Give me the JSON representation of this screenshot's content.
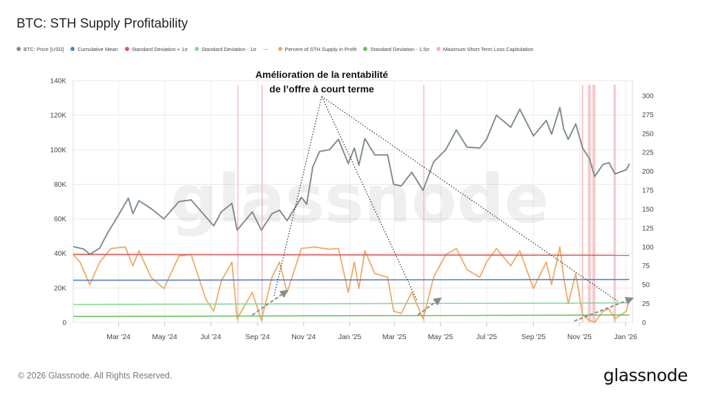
{
  "title": "BTC: STH Supply Profitability",
  "legend": [
    {
      "label": "BTC: Price [USD]",
      "color": "#7f8c8d"
    },
    {
      "label": "Cumulative Mean",
      "color": "#4a7fd4"
    },
    {
      "label": "Standard Deviation + 1σ",
      "color": "#e05555"
    },
    {
      "label": "Standard Deviation - 1σ",
      "color": "#7fd99a"
    },
    {
      "label": "Percent of STH Supply in Profit",
      "color": "#f0a860"
    },
    {
      "label": "Standard Deviation - 1.5σ",
      "color": "#6abf5a"
    },
    {
      "label": "Maximum Short Term Loss Capitulation",
      "color": "#f2b8bc"
    }
  ],
  "legend_separator": "---",
  "annotation": [
    "Amélioration de la rentabilité",
    "de l’offre à court terme"
  ],
  "watermark": "glassnode",
  "footer": "© 2026 Glassnode. All Rights Reserved.",
  "brand": "glassnode",
  "chart_data": {
    "type": "line",
    "x_axis": {
      "type": "date",
      "range": [
        "2024-01-01",
        "2026-01-10"
      ],
      "ticks": [
        {
          "label": "Mar '24",
          "date": "2024-03-01"
        },
        {
          "label": "May '24",
          "date": "2024-05-01"
        },
        {
          "label": "Jul '24",
          "date": "2024-07-01"
        },
        {
          "label": "Sep '24",
          "date": "2024-09-01"
        },
        {
          "label": "Nov '24",
          "date": "2024-11-01"
        },
        {
          "label": "Jan '25",
          "date": "2025-01-01"
        },
        {
          "label": "Mar '25",
          "date": "2025-03-01"
        },
        {
          "label": "May '25",
          "date": "2025-05-01"
        },
        {
          "label": "Jul '25",
          "date": "2025-07-01"
        },
        {
          "label": "Sep '25",
          "date": "2025-09-01"
        },
        {
          "label": "Nov '25",
          "date": "2025-11-01"
        },
        {
          "label": "Jan '26",
          "date": "2026-01-01"
        }
      ]
    },
    "y_left": {
      "range": [
        0,
        140000
      ],
      "tick_values": [
        0,
        20000,
        40000,
        60000,
        80000,
        100000,
        120000,
        140000
      ],
      "tick_labels": [
        "0",
        "20K",
        "40K",
        "60K",
        "80K",
        "100K",
        "120K",
        "140K"
      ]
    },
    "y_right": {
      "range": [
        0,
        320
      ],
      "tick_values": [
        0,
        25,
        50,
        75,
        100,
        125,
        150,
        175,
        200,
        225,
        250,
        275,
        300
      ],
      "tick_labels": [
        "0",
        "25",
        "50",
        "75",
        "100",
        "125",
        "150",
        "175",
        "200",
        "225",
        "250",
        "275",
        "300"
      ]
    },
    "grid": true,
    "series": [
      {
        "name": "BTC: Price [USD]",
        "axis": "left",
        "color": "#7f8c8d",
        "points": [
          [
            "2024-01-01",
            44000
          ],
          [
            "2024-01-15",
            42500
          ],
          [
            "2024-01-23",
            39500
          ],
          [
            "2024-02-05",
            43000
          ],
          [
            "2024-02-15",
            51500
          ],
          [
            "2024-02-29",
            61500
          ],
          [
            "2024-03-14",
            72000
          ],
          [
            "2024-03-20",
            63000
          ],
          [
            "2024-03-28",
            70500
          ],
          [
            "2024-04-13",
            66000
          ],
          [
            "2024-04-30",
            60000
          ],
          [
            "2024-05-20",
            70000
          ],
          [
            "2024-06-05",
            71000
          ],
          [
            "2024-06-25",
            61000
          ],
          [
            "2024-07-05",
            56000
          ],
          [
            "2024-07-15",
            64000
          ],
          [
            "2024-07-29",
            69000
          ],
          [
            "2024-08-05",
            53500
          ],
          [
            "2024-08-25",
            64000
          ],
          [
            "2024-09-06",
            53500
          ],
          [
            "2024-09-20",
            63000
          ],
          [
            "2024-09-30",
            65000
          ],
          [
            "2024-10-10",
            59000
          ],
          [
            "2024-10-29",
            72500
          ],
          [
            "2024-11-05",
            68500
          ],
          [
            "2024-11-13",
            90000
          ],
          [
            "2024-11-22",
            99000
          ],
          [
            "2024-12-05",
            100000
          ],
          [
            "2024-12-17",
            106000
          ],
          [
            "2024-12-30",
            92000
          ],
          [
            "2025-01-07",
            101000
          ],
          [
            "2025-01-13",
            91000
          ],
          [
            "2025-01-21",
            106500
          ],
          [
            "2025-02-03",
            97000
          ],
          [
            "2025-02-20",
            97000
          ],
          [
            "2025-02-28",
            80000
          ],
          [
            "2025-03-10",
            79000
          ],
          [
            "2025-03-24",
            87000
          ],
          [
            "2025-04-08",
            76500
          ],
          [
            "2025-04-22",
            93000
          ],
          [
            "2025-05-08",
            100000
          ],
          [
            "2025-05-22",
            111500
          ],
          [
            "2025-06-05",
            101500
          ],
          [
            "2025-06-22",
            101000
          ],
          [
            "2025-07-01",
            106000
          ],
          [
            "2025-07-14",
            120000
          ],
          [
            "2025-08-02",
            113000
          ],
          [
            "2025-08-14",
            123500
          ],
          [
            "2025-09-01",
            108000
          ],
          [
            "2025-09-18",
            117000
          ],
          [
            "2025-09-25",
            109000
          ],
          [
            "2025-10-06",
            124500
          ],
          [
            "2025-10-11",
            112000
          ],
          [
            "2025-10-17",
            106000
          ],
          [
            "2025-10-27",
            115000
          ],
          [
            "2025-11-05",
            101000
          ],
          [
            "2025-11-14",
            95000
          ],
          [
            "2025-11-21",
            84500
          ],
          [
            "2025-12-02",
            91500
          ],
          [
            "2025-12-10",
            92500
          ],
          [
            "2025-12-18",
            86000
          ],
          [
            "2026-01-02",
            88500
          ],
          [
            "2026-01-06",
            92000
          ]
        ]
      },
      {
        "name": "Percent of STH Supply in Profit",
        "axis": "right",
        "color": "#f0a860",
        "points": [
          [
            "2024-01-01",
            90
          ],
          [
            "2024-01-10",
            80
          ],
          [
            "2024-01-23",
            50
          ],
          [
            "2024-02-05",
            80
          ],
          [
            "2024-02-20",
            98
          ],
          [
            "2024-03-10",
            100
          ],
          [
            "2024-03-20",
            75
          ],
          [
            "2024-03-28",
            95
          ],
          [
            "2024-04-13",
            60
          ],
          [
            "2024-04-30",
            45
          ],
          [
            "2024-05-20",
            88
          ],
          [
            "2024-06-05",
            90
          ],
          [
            "2024-06-25",
            30
          ],
          [
            "2024-07-05",
            15
          ],
          [
            "2024-07-15",
            55
          ],
          [
            "2024-07-29",
            80
          ],
          [
            "2024-08-05",
            5
          ],
          [
            "2024-08-25",
            40
          ],
          [
            "2024-09-06",
            3
          ],
          [
            "2024-09-20",
            60
          ],
          [
            "2024-09-30",
            80
          ],
          [
            "2024-10-10",
            40
          ],
          [
            "2024-10-29",
            98
          ],
          [
            "2024-11-15",
            100
          ],
          [
            "2024-12-05",
            97
          ],
          [
            "2024-12-17",
            98
          ],
          [
            "2024-12-30",
            40
          ],
          [
            "2025-01-07",
            80
          ],
          [
            "2025-01-13",
            45
          ],
          [
            "2025-01-21",
            95
          ],
          [
            "2025-02-03",
            65
          ],
          [
            "2025-02-20",
            60
          ],
          [
            "2025-02-28",
            15
          ],
          [
            "2025-03-10",
            12
          ],
          [
            "2025-03-24",
            40
          ],
          [
            "2025-04-08",
            5
          ],
          [
            "2025-04-22",
            60
          ],
          [
            "2025-05-08",
            90
          ],
          [
            "2025-05-22",
            98
          ],
          [
            "2025-06-05",
            70
          ],
          [
            "2025-06-22",
            60
          ],
          [
            "2025-07-01",
            80
          ],
          [
            "2025-07-14",
            98
          ],
          [
            "2025-08-02",
            75
          ],
          [
            "2025-08-14",
            95
          ],
          [
            "2025-09-01",
            45
          ],
          [
            "2025-09-18",
            80
          ],
          [
            "2025-09-25",
            50
          ],
          [
            "2025-10-06",
            100
          ],
          [
            "2025-10-11",
            60
          ],
          [
            "2025-10-17",
            25
          ],
          [
            "2025-10-27",
            65
          ],
          [
            "2025-11-05",
            10
          ],
          [
            "2025-11-14",
            3
          ],
          [
            "2025-11-21",
            0
          ],
          [
            "2025-12-02",
            15
          ],
          [
            "2025-12-10",
            18
          ],
          [
            "2025-12-18",
            5
          ],
          [
            "2026-01-02",
            15
          ],
          [
            "2026-01-06",
            32
          ]
        ]
      },
      {
        "name": "Standard Deviation + 1σ",
        "axis": "right",
        "color": "#e05555",
        "points": [
          [
            "2024-01-01",
            90
          ],
          [
            "2026-01-06",
            89
          ]
        ]
      },
      {
        "name": "Cumulative Mean",
        "axis": "right",
        "color": "#4a7fd4",
        "points": [
          [
            "2024-01-01",
            56
          ],
          [
            "2026-01-06",
            57
          ]
        ]
      },
      {
        "name": "Standard Deviation - 1σ",
        "axis": "right",
        "color": "#7fd99a",
        "points": [
          [
            "2024-01-01",
            24
          ],
          [
            "2026-01-06",
            26
          ]
        ]
      },
      {
        "name": "Standard Deviation - 1.5σ",
        "axis": "right",
        "color": "#6abf5a",
        "points": [
          [
            "2024-01-01",
            8
          ],
          [
            "2026-01-06",
            10
          ]
        ]
      }
    ],
    "capitulation_periods": [
      [
        "2024-08-05",
        "2024-08-06"
      ],
      [
        "2024-09-06",
        "2024-09-08"
      ],
      [
        "2025-04-08",
        "2025-04-09"
      ],
      [
        "2025-11-04",
        "2025-11-06"
      ],
      [
        "2025-11-12",
        "2025-11-16"
      ],
      [
        "2025-11-18",
        "2025-11-22"
      ],
      [
        "2025-12-16",
        "2025-12-19"
      ]
    ],
    "annotation_arrows": [
      {
        "from": [
          "2024-08-25",
          10
        ],
        "to": [
          "2024-10-10",
          42
        ]
      },
      {
        "from": [
          "2025-04-01",
          10
        ],
        "to": [
          "2025-05-01",
          32
        ]
      },
      {
        "from": [
          "2025-10-25",
          2
        ],
        "to": [
          "2026-01-10",
          32
        ]
      }
    ]
  }
}
